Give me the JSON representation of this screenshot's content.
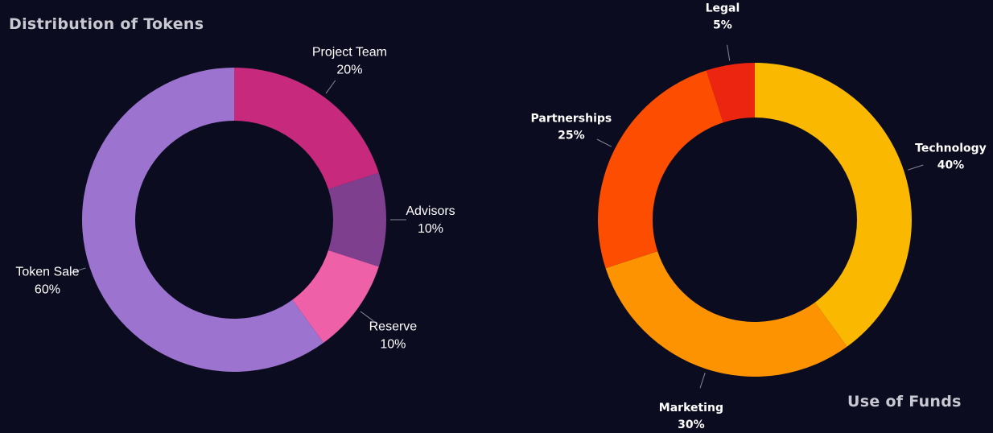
{
  "chart_data": [
    {
      "type": "pie",
      "title": "Distribution of Tokens",
      "donut": true,
      "categories": [
        "Project Team",
        "Advisors",
        "Reserve",
        "Token Sale"
      ],
      "values": [
        20,
        10,
        10,
        60
      ],
      "value_labels": [
        "20%",
        "10%",
        "10%",
        "60%"
      ],
      "colors": [
        "#c72a7c",
        "#7e3f8f",
        "#ee60a8",
        "#9c74cf"
      ],
      "legend": "none",
      "grid": false
    },
    {
      "type": "pie",
      "title": "Use of Funds",
      "donut": true,
      "categories": [
        "Technology",
        "Marketing",
        "Partnerships",
        "Legal"
      ],
      "values": [
        40,
        30,
        25,
        5
      ],
      "value_labels": [
        "40%",
        "30%",
        "25%",
        "5%"
      ],
      "colors": [
        "#fab800",
        "#fd9301",
        "#fc4d01",
        "#ec2510"
      ],
      "legend": "none",
      "grid": false
    }
  ],
  "background": "#0b0c1f"
}
